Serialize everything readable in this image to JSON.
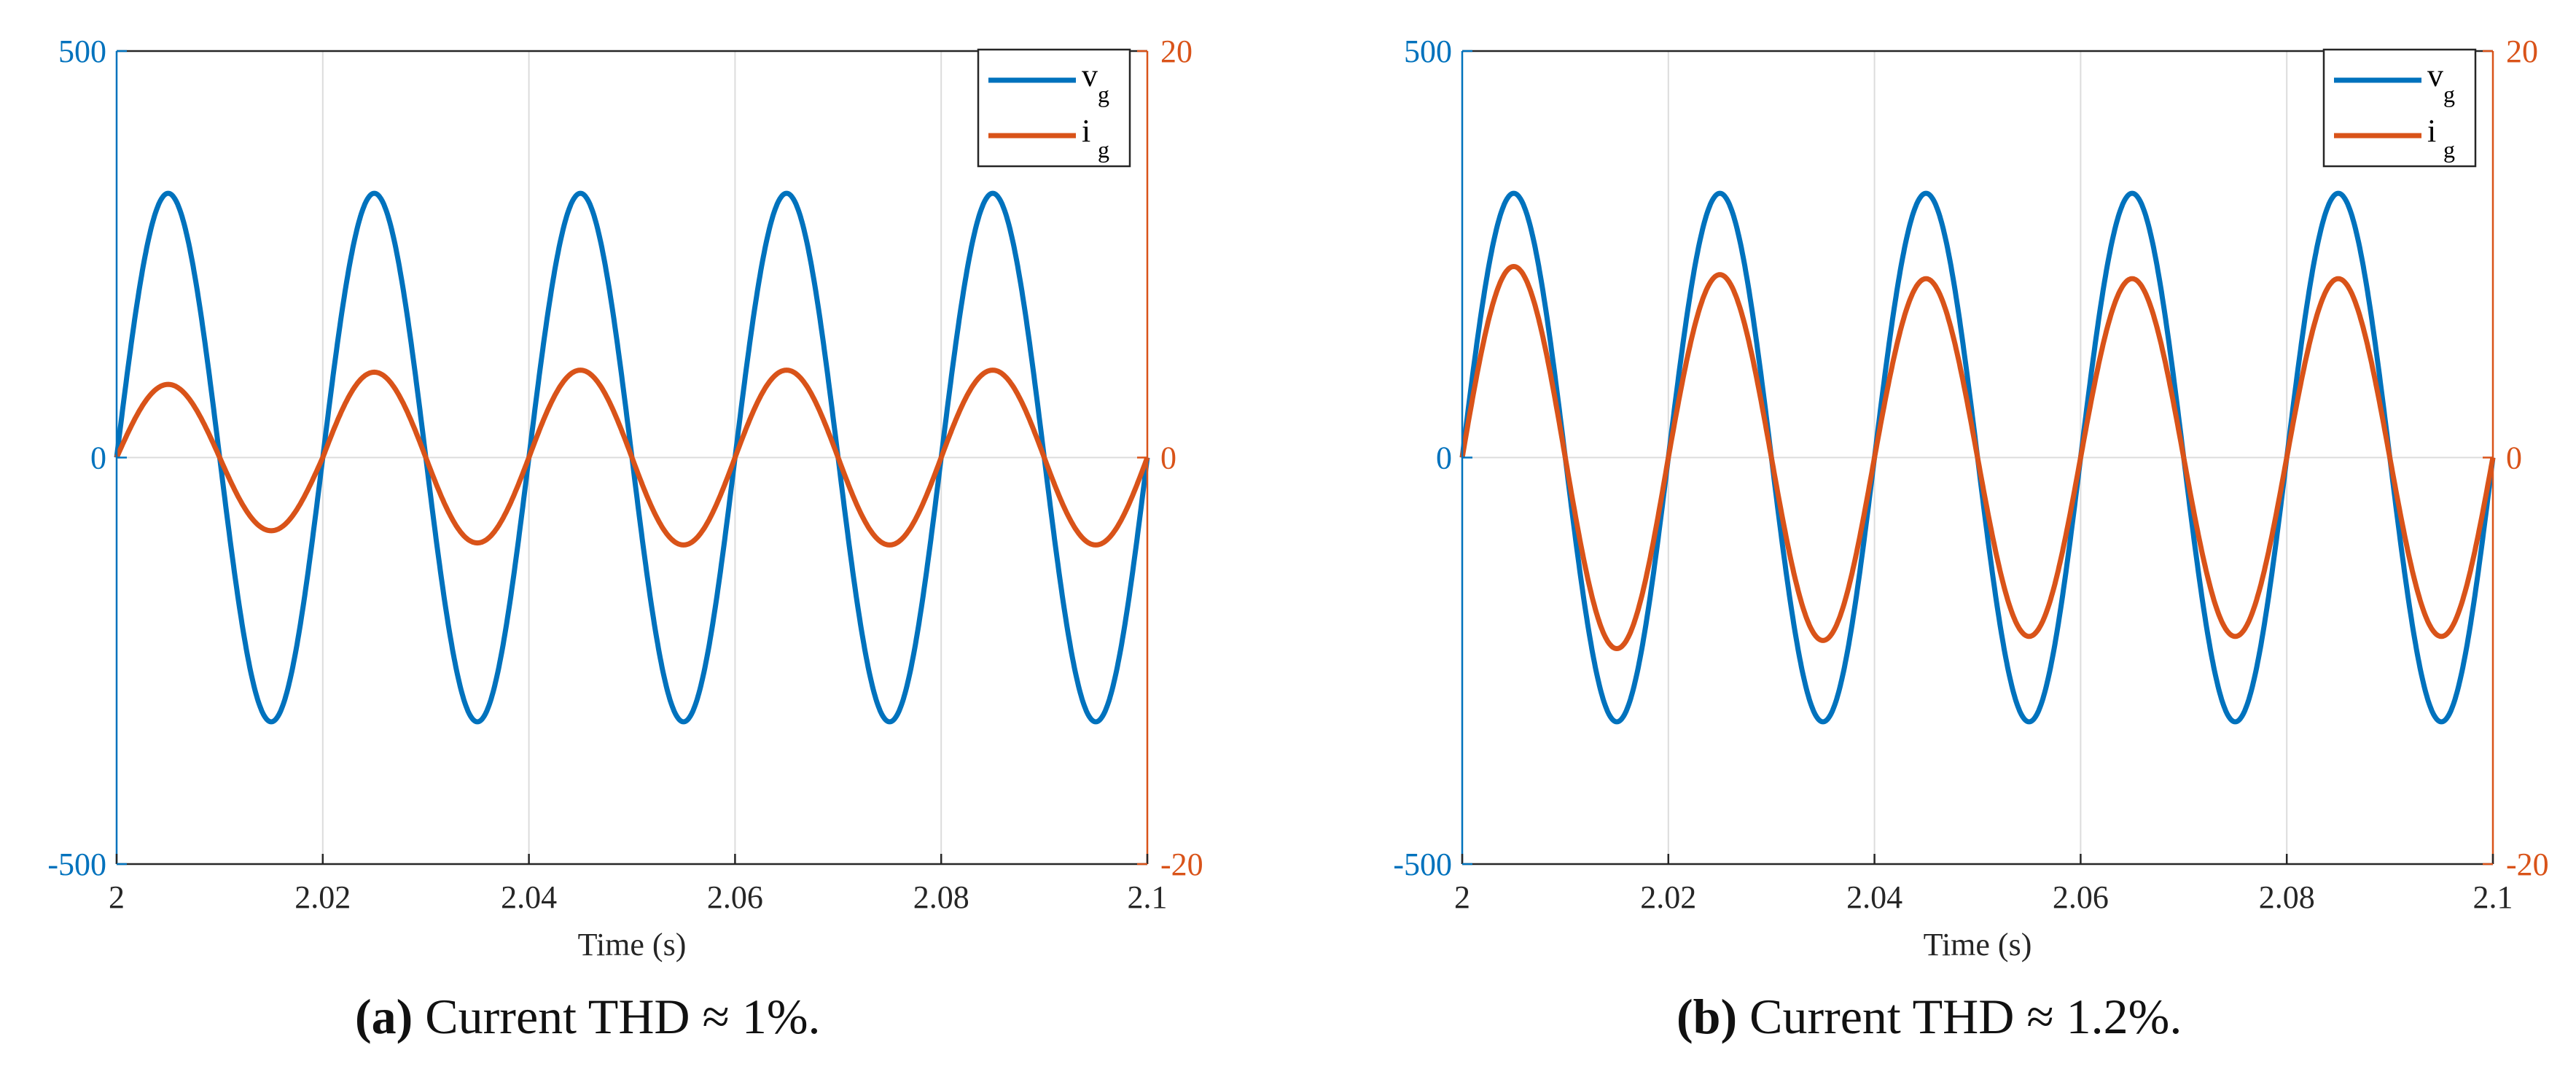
{
  "colors": {
    "vg": "#0072BD",
    "ig": "#D95319",
    "grid": "#dcdcdc",
    "axis": "#262626"
  },
  "charts": [
    {
      "id": "a",
      "caption_label": "(a)",
      "caption_text": "Current THD ≈ 1%.",
      "xlabel": "Time (s)",
      "x_ticks": [
        "2",
        "2.02",
        "2.04",
        "2.06",
        "2.08",
        "2.1"
      ],
      "y_left_ticks": [
        "500",
        "0",
        "-500"
      ],
      "y_right_ticks": [
        "20",
        "0",
        "-20"
      ],
      "legend": [
        {
          "main": "v",
          "sub": "g"
        },
        {
          "main": "i",
          "sub": "g"
        }
      ]
    },
    {
      "id": "b",
      "caption_label": "(b)",
      "caption_text": "Current THD ≈ 1.2%.",
      "xlabel": "Time (s)",
      "x_ticks": [
        "2",
        "2.02",
        "2.04",
        "2.06",
        "2.08",
        "2.1"
      ],
      "y_left_ticks": [
        "500",
        "0",
        "-500"
      ],
      "y_right_ticks": [
        "20",
        "0",
        "-20"
      ],
      "legend": [
        {
          "main": "v",
          "sub": "g"
        },
        {
          "main": "i",
          "sub": "g"
        }
      ]
    }
  ],
  "chart_data": [
    {
      "type": "line",
      "title": "",
      "xlabel": "Time (s)",
      "ylabel_left": "",
      "ylabel_right": "",
      "xlim": [
        2,
        2.1
      ],
      "ylim_left": [
        -500,
        500
      ],
      "ylim_right": [
        -20,
        20
      ],
      "x_ticks": [
        2,
        2.02,
        2.04,
        2.06,
        2.08,
        2.1
      ],
      "grid": true,
      "legend_position": "top-right",
      "series": [
        {
          "name": "v_g",
          "axis": "left",
          "frequency_hz": 50,
          "amplitude": 325,
          "peaks": [
            325,
            325,
            325,
            325,
            325
          ]
        },
        {
          "name": "i_g",
          "axis": "right",
          "frequency_hz": 50,
          "amplitude": 4,
          "peaks": [
            3.6,
            4.2,
            4.3,
            4.3,
            4.3
          ]
        }
      ]
    },
    {
      "type": "line",
      "title": "",
      "xlabel": "Time (s)",
      "ylabel_left": "",
      "ylabel_right": "",
      "xlim": [
        2,
        2.1
      ],
      "ylim_left": [
        -500,
        500
      ],
      "ylim_right": [
        -20,
        20
      ],
      "x_ticks": [
        2,
        2.02,
        2.04,
        2.06,
        2.08,
        2.1
      ],
      "grid": true,
      "legend_position": "top-right",
      "series": [
        {
          "name": "v_g",
          "axis": "left",
          "frequency_hz": 50,
          "amplitude": 325,
          "peaks": [
            325,
            325,
            325,
            325,
            325
          ]
        },
        {
          "name": "i_g",
          "axis": "right",
          "frequency_hz": 50,
          "amplitude": 9,
          "peaks": [
            9.4,
            9.0,
            8.8,
            8.8,
            8.8
          ]
        }
      ]
    }
  ]
}
